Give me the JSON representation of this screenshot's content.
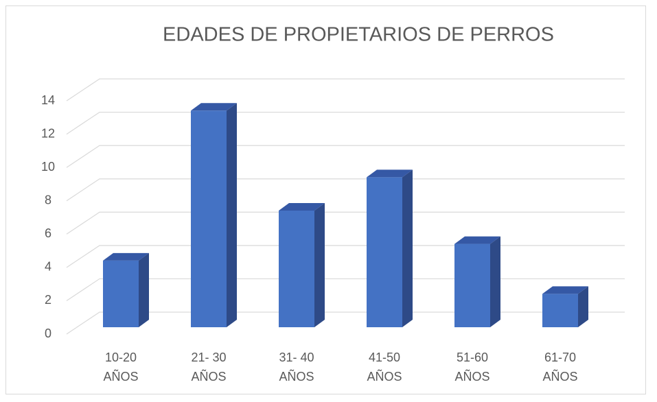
{
  "chart_data": {
    "type": "bar3d",
    "title": "EDADES DE PROPIETARIOS DE PERROS",
    "categories": [
      "10-20 AÑOS",
      "21- 30 AÑOS",
      "31- 40 AÑOS",
      "41-50 AÑOS",
      "51-60 AÑOS",
      "61-70 AÑOS"
    ],
    "values": [
      4,
      13,
      7,
      9,
      5,
      2
    ],
    "color": "#4472c4",
    "ylim": [
      0,
      14
    ],
    "yticks": [
      0,
      2,
      4,
      6,
      8,
      10,
      12,
      14
    ],
    "grid": true
  }
}
